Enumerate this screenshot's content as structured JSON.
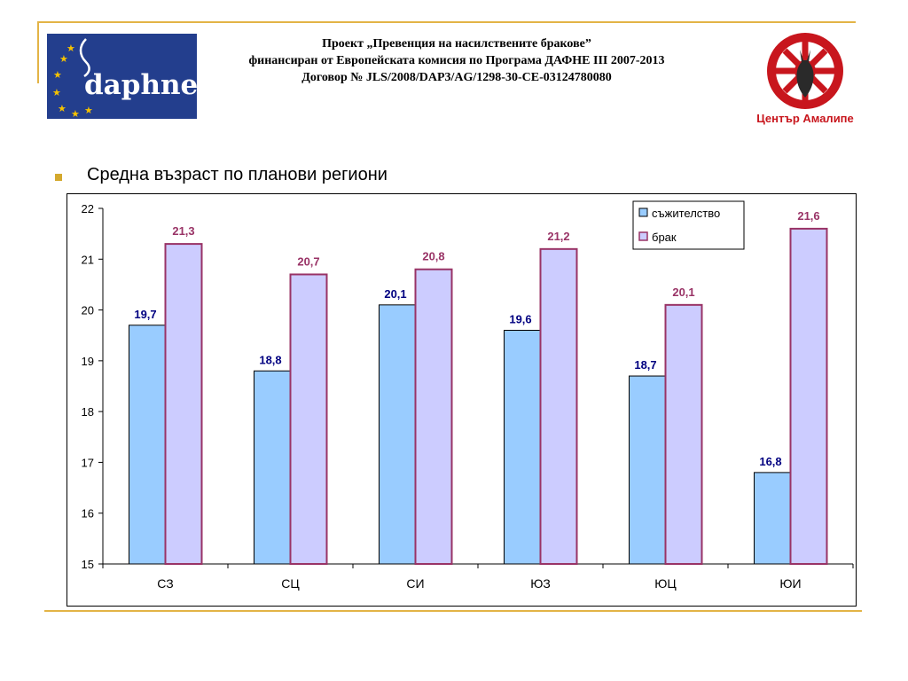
{
  "header": {
    "line1": "Проект „Превенция на насилствените бракове”",
    "line2": "финансиран от Европейската комисия по Програма ДАФНЕ III 2007-2013",
    "line3": "Договор № JLS/2008/DAP3/AG/1298-30-CE-03124780080"
  },
  "logos": {
    "daphne_text": "daphne",
    "amalipe_caption": "Център Амалипе"
  },
  "slide": {
    "bullet_title": "Средна възраст по планови региони"
  },
  "colors": {
    "series1_fill": "#99ccff",
    "series2_fill": "#ccccff",
    "series2_border": "#993366",
    "label1": "#000080",
    "label2": "#993366",
    "accent_gold": "#e3b446"
  },
  "chart_data": {
    "type": "bar",
    "categories": [
      "СЗ",
      "СЦ",
      "СИ",
      "ЮЗ",
      "ЮЦ",
      "ЮИ"
    ],
    "series": [
      {
        "name": "съжителство",
        "values": [
          19.7,
          18.8,
          20.1,
          19.6,
          18.7,
          16.8
        ],
        "labels": [
          "19,7",
          "18,8",
          "20,1",
          "19,6",
          "18,7",
          "16,8"
        ]
      },
      {
        "name": "брак",
        "values": [
          21.3,
          20.7,
          20.8,
          21.2,
          20.1,
          21.6
        ],
        "labels": [
          "21,3",
          "20,7",
          "20,8",
          "21,2",
          "20,1",
          "21,6"
        ]
      }
    ],
    "ylim": [
      15,
      22
    ],
    "yticks": [
      15,
      16,
      17,
      18,
      19,
      20,
      21,
      22
    ],
    "grid": false,
    "legend": "top-right"
  }
}
